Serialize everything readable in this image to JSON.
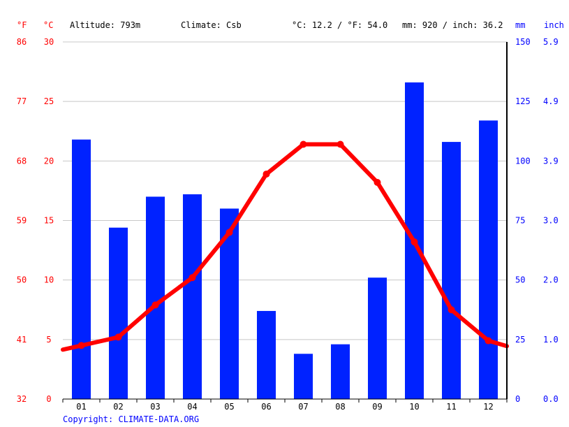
{
  "header": {
    "unit_f": "°F",
    "unit_c": "°C",
    "altitude": "Altitude: 793m",
    "climate": "Climate: Csb",
    "temp_avg": "°C: 12.2 / °F: 54.0",
    "precip_total": "mm: 920 / inch: 36.2",
    "unit_mm": "mm",
    "unit_inch": "inch"
  },
  "footer": {
    "copyright": "Copyright: CLIMATE-DATA.ORG"
  },
  "colors": {
    "temperature": "#ff0000",
    "precipitation": "#0022ff",
    "grid": "#c8c8c8"
  },
  "chart_data": {
    "type": "bar+line",
    "categories": [
      "01",
      "02",
      "03",
      "04",
      "05",
      "06",
      "07",
      "08",
      "09",
      "10",
      "11",
      "12"
    ],
    "series": [
      {
        "type": "bar",
        "axis": "right",
        "values": [
          109,
          72,
          85,
          86,
          80,
          37,
          19,
          23,
          51,
          133,
          108,
          117
        ]
      },
      {
        "type": "line",
        "axis": "left",
        "values": [
          4.5,
          5.2,
          7.9,
          10.2,
          14.0,
          18.9,
          21.4,
          21.4,
          18.2,
          13.2,
          7.5,
          4.9
        ]
      }
    ],
    "y_left": {
      "unit": "°C",
      "range": [
        0,
        30
      ],
      "ticks": [
        0,
        5,
        10,
        15,
        20,
        25,
        30
      ]
    },
    "y_left_f": {
      "unit": "°F",
      "ticks": [
        32,
        41,
        50,
        59,
        68,
        77,
        86
      ]
    },
    "y_right": {
      "unit": "mm",
      "range": [
        0,
        150
      ],
      "ticks": [
        0,
        25,
        50,
        75,
        100,
        125,
        150
      ]
    },
    "y_right_inch": {
      "unit": "inch",
      "ticks": [
        "0.0",
        "1.0",
        "2.0",
        "3.0",
        "3.9",
        "4.9",
        "5.9"
      ]
    },
    "grid": true
  }
}
